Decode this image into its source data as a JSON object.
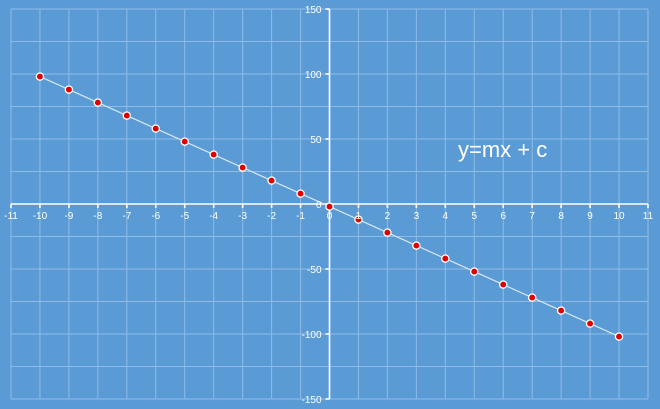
{
  "chart_data": {
    "type": "scatter",
    "title": "",
    "xlabel": "",
    "ylabel": "",
    "xlim": [
      -11,
      11
    ],
    "ylim": [
      -150,
      150
    ],
    "x_ticks": [
      -11,
      -10,
      -9,
      -8,
      -7,
      -6,
      -5,
      -4,
      -3,
      -2,
      -1,
      0,
      1,
      2,
      3,
      4,
      5,
      6,
      7,
      8,
      9,
      10,
      11
    ],
    "y_ticks": [
      150,
      100,
      50,
      0,
      -50,
      -100,
      -150
    ],
    "x_tick_labels": [
      "-11",
      "-10",
      "-9",
      "-8",
      "-7",
      "-6",
      "-5",
      "-4",
      "-3",
      "-2",
      "-1",
      "0",
      "1",
      "2",
      "3",
      "4",
      "5",
      "6",
      "7",
      "8",
      "9",
      "10",
      "11"
    ],
    "y_tick_labels": [
      "150",
      "100",
      "50",
      "0",
      "-50",
      "-100",
      "-150"
    ],
    "grid": true,
    "series": [
      {
        "x": [
          -10,
          -9,
          -8,
          -7,
          -6,
          -5,
          -4,
          -3,
          -2,
          -1,
          0,
          1,
          2,
          3,
          4,
          5,
          6,
          7,
          8,
          9,
          10
        ],
        "y": [
          98,
          88,
          78,
          68,
          58,
          48,
          38,
          28,
          18,
          8,
          -2,
          -12,
          -22,
          -32,
          -42,
          -52,
          -62,
          -72,
          -82,
          -92,
          -102
        ]
      }
    ],
    "annotation": "y=mx + c",
    "colors": {
      "background": "#5b9bd5",
      "grid": "#8fbbe6",
      "axis": "#ffffff",
      "line": "#d6e6f5",
      "marker_fill": "#e00000",
      "marker_edge": "#ffffff"
    }
  }
}
